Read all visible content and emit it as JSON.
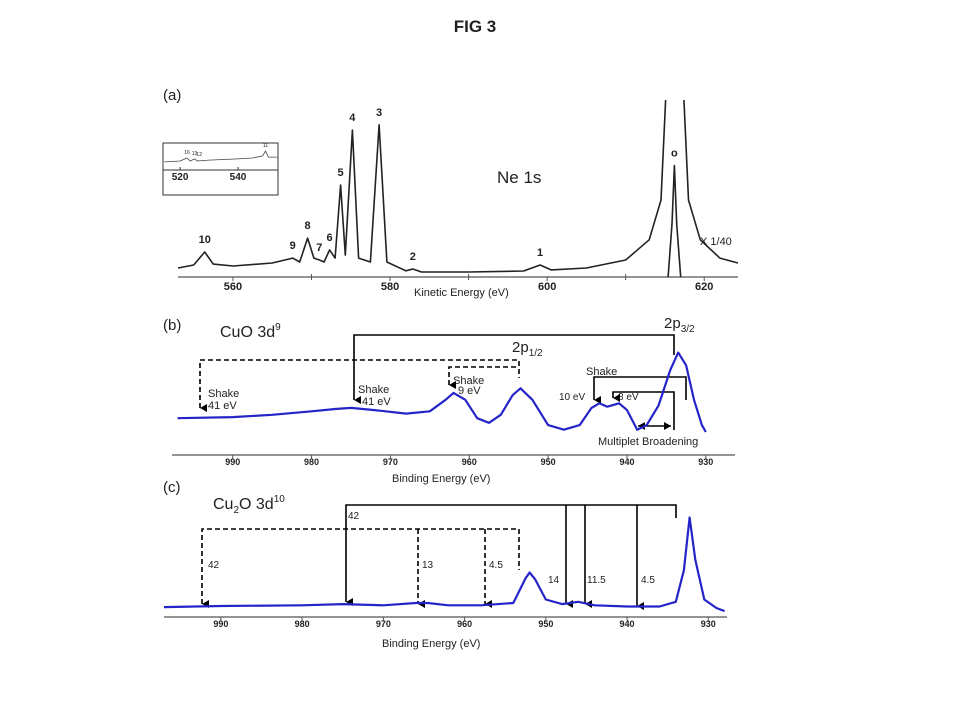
{
  "figure_title": "FIG 3",
  "chart_data": [
    {
      "type": "line",
      "panel_label": "(a)",
      "title": "Ne 1s",
      "scale_note": "X 1/40",
      "x_label": "Kinetic Energy (eV)",
      "xlim": [
        553,
        624.3
      ],
      "ylim": [
        0,
        100
      ],
      "xticks": [
        560,
        580,
        600,
        620
      ],
      "minor_xticks": [
        570,
        590,
        610
      ],
      "series": [
        {
          "color": "#222222",
          "x": [
            553,
            555,
            556.4,
            557.5,
            560,
            565,
            567.6,
            568.5,
            569.5,
            570.3,
            571,
            571.6,
            572.3,
            573,
            573.7,
            574.3,
            575.2,
            576,
            577.5,
            578.6,
            579.6,
            582,
            582.9,
            584,
            590,
            597,
            599.1,
            600.5,
            605,
            610,
            613,
            614.5,
            615.5,
            617,
            618,
            619.5,
            622,
            624.3
          ],
          "values": [
            5.1,
            6.8,
            14.1,
            7.3,
            6.2,
            7.9,
            10.7,
            8.5,
            22,
            10.7,
            9.6,
            8.5,
            15.3,
            10.7,
            52,
            12.4,
            83,
            10.7,
            8.5,
            86,
            8.5,
            3.5,
            4.5,
            2.8,
            2.8,
            3.4,
            6.8,
            4,
            5.1,
            9.6,
            21,
            43.5,
            140,
            140,
            43.5,
            21,
            10.7,
            7.9
          ]
        },
        {
          "color": "#222222",
          "x": [
            615.4,
            615.9,
            616.2,
            616.5,
            617.0
          ],
          "values": [
            0,
            30,
            63,
            30,
            0
          ]
        }
      ],
      "peaks": [
        {
          "label": "10",
          "x": 556.4,
          "y": 14.1
        },
        {
          "label": "9",
          "x": 567.6,
          "y": 10.7
        },
        {
          "label": "8",
          "x": 569.5,
          "y": 22
        },
        {
          "label": "7",
          "x": 571,
          "y": 9.6
        },
        {
          "label": "6",
          "x": 572.3,
          "y": 15.3
        },
        {
          "label": "5",
          "x": 573.7,
          "y": 52
        },
        {
          "label": "4",
          "x": 575.2,
          "y": 83
        },
        {
          "label": "3",
          "x": 578.6,
          "y": 86
        },
        {
          "label": "2",
          "x": 582.9,
          "y": 4.5
        },
        {
          "label": "1",
          "x": 599.1,
          "y": 6.8
        },
        {
          "label": "o",
          "x": 616.2,
          "y": 63
        }
      ],
      "inset": {
        "xlim": [
          514.1,
          553.8
        ],
        "ylim": [
          0,
          100
        ],
        "xticks": [
          520,
          540
        ],
        "x": [
          514.5,
          520,
          522.4,
          523.5,
          525,
          526,
          530,
          540,
          545,
          548.5,
          549.5,
          550.5,
          553.5
        ],
        "values": [
          27,
          30,
          40,
          30,
          37,
          30,
          33,
          37,
          40,
          47,
          63,
          43,
          43
        ],
        "peaks": [
          {
            "label": "16",
            "x": 522.4,
            "y": 40
          },
          {
            "label": "13",
            "x": 525,
            "y": 37
          },
          {
            "label": "12",
            "x": 526.6,
            "y": 33
          },
          {
            "label": "11",
            "x": 549.5,
            "y": 63
          }
        ]
      }
    },
    {
      "type": "line",
      "panel_label": "(b)",
      "label": {
        "text": "CuO 3d",
        "sup": "9"
      },
      "x_label": "Binding Energy (eV)",
      "xlim": [
        997.7,
        926.3
      ],
      "ylim": [
        0,
        100
      ],
      "xticks": [
        990,
        980,
        970,
        960,
        950,
        940,
        930
      ],
      "series": [
        {
          "color": "#2424c8",
          "x": [
            997,
            990,
            985,
            980,
            977,
            975,
            972,
            968,
            965,
            963,
            962,
            960.5,
            959,
            957.5,
            956,
            954.5,
            953.5,
            952,
            950,
            948,
            946,
            944.5,
            943.5,
            942.5,
            941,
            940,
            938.7,
            937.5,
            936,
            934.5,
            933.5,
            932.5,
            931.5,
            930.5,
            930
          ],
          "values": [
            32,
            33,
            35,
            38,
            40,
            41,
            39,
            36,
            38,
            48,
            54,
            48,
            32,
            28,
            35,
            52,
            58,
            48,
            26,
            22,
            26,
            41,
            45,
            42,
            45,
            39,
            22,
            26,
            43,
            74,
            89,
            78,
            48,
            26,
            20
          ]
        }
      ],
      "annotations": {
        "p32": "2p",
        "p32_sub": "3/2",
        "p12": "2p",
        "p12_sub": "1/2",
        "shake1": "Shake",
        "shake1_ev": "41 eV",
        "shake2": "Shake",
        "shake2_ev": "41 eV",
        "shake3": "Shake",
        "shake3_ev": "9 eV",
        "shake4": "Shake",
        "ev10": "10 eV",
        "ev8": "8 eV",
        "multiplet": "Multiplet Broadening"
      }
    },
    {
      "type": "line",
      "panel_label": "(c)",
      "label": {
        "text": "Cu",
        "sub": "2",
        "text2": "O 3d",
        "sup": "10"
      },
      "x_label": "Binding Energy (eV)",
      "xlim": [
        997,
        927.7
      ],
      "ylim": [
        0,
        100
      ],
      "xticks": [
        990,
        980,
        970,
        960,
        950,
        940,
        930
      ],
      "series": [
        {
          "color": "#2424c8",
          "x": [
            997,
            990,
            980,
            975,
            970,
            966,
            964.5,
            962,
            958,
            954,
            952.5,
            952,
            951.3,
            950,
            948,
            946,
            944,
            940,
            936,
            934,
            933,
            932.3,
            931.6,
            930.5,
            929,
            928
          ],
          "values": [
            8.5,
            9.4,
            10,
            11,
            10,
            12,
            12,
            10,
            10,
            12,
            33,
            38,
            32,
            15,
            11,
            13,
            10,
            9,
            9,
            13,
            40,
            85,
            49,
            15,
            7.7,
            5
          ]
        }
      ],
      "annotations": {
        "a42top": "42",
        "a42": "42",
        "a13": "13",
        "a45": "4.5",
        "a14": "14",
        "a115": "11.5",
        "a45b": "4.5"
      }
    }
  ]
}
